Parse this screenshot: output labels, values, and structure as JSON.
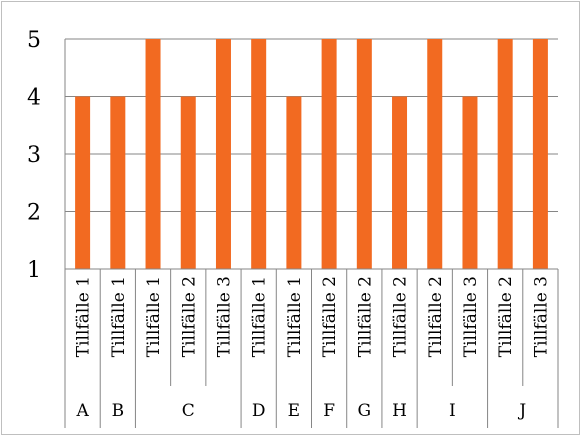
{
  "chart_data": {
    "type": "bar",
    "title": "",
    "xlabel": "",
    "ylabel": "",
    "ylim": [
      1,
      5
    ],
    "yticks": [
      "1",
      "2",
      "3",
      "4",
      "5"
    ],
    "grid": true,
    "legend": "none",
    "bar_color": "#f26a21",
    "categories": [
      "Tillfälle 1",
      "Tillfälle 1",
      "Tillfälle 1",
      "Tillfälle 2",
      "Tillfälle 3",
      "Tillfälle 1",
      "Tillfälle 1",
      "Tillfälle 2",
      "Tillfälle 2",
      "Tillfälle 2",
      "Tillfälle 2",
      "Tillfälle 3",
      "Tillfälle 2",
      "Tillfälle 3"
    ],
    "groups": [
      {
        "label": "A",
        "count": 1
      },
      {
        "label": "B",
        "count": 1
      },
      {
        "label": "C",
        "count": 3
      },
      {
        "label": "D",
        "count": 1
      },
      {
        "label": "E",
        "count": 1
      },
      {
        "label": "F",
        "count": 1
      },
      {
        "label": "G",
        "count": 1
      },
      {
        "label": "H",
        "count": 1
      },
      {
        "label": "I",
        "count": 2
      },
      {
        "label": "J",
        "count": 2
      }
    ],
    "values": [
      4,
      4,
      5,
      4,
      5,
      5,
      4,
      5,
      5,
      4,
      5,
      4,
      5,
      5
    ]
  }
}
